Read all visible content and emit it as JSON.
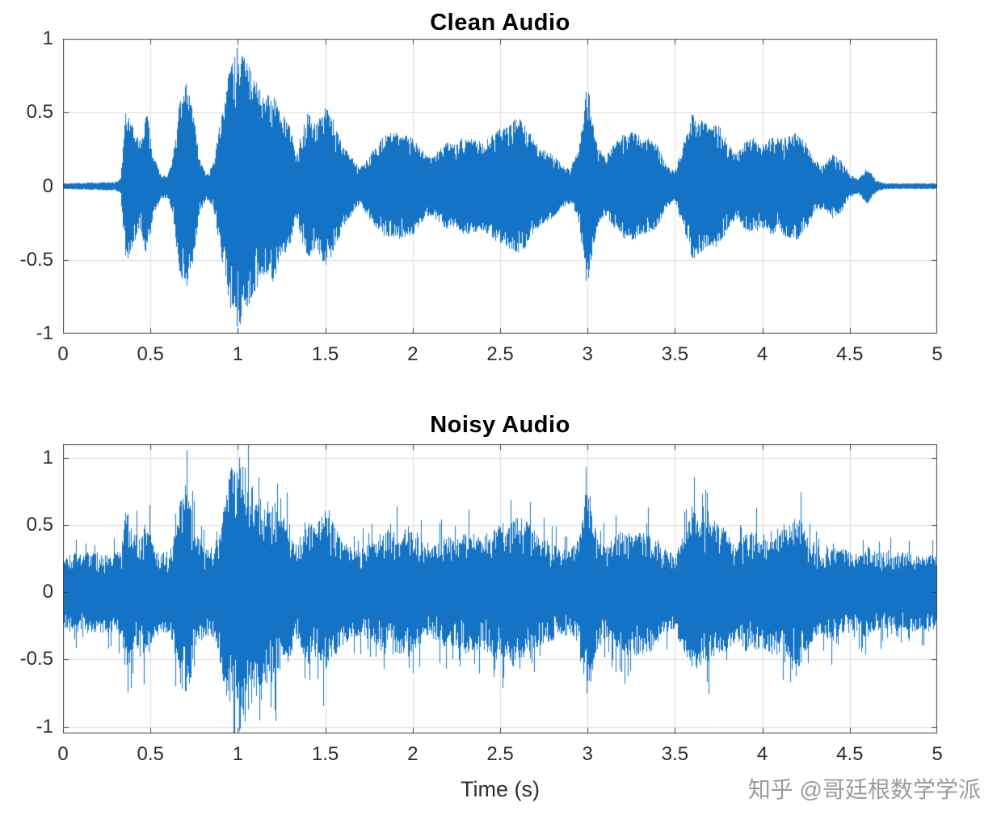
{
  "figure": {
    "background": "#ffffff",
    "watermark": "知乎 @哥廷根数学学派"
  },
  "axis_style": {
    "tick_label_color": "#2e2e2e",
    "grid_color": "#dcdcdc",
    "box_color": "#3f3f3f",
    "title_color": "#000000"
  },
  "chart_data": [
    {
      "type": "area",
      "id": "clean-audio",
      "title": "Clean Audio",
      "xlabel": "",
      "ylabel": "",
      "xlim": [
        0,
        5
      ],
      "ylim": [
        -1,
        1
      ],
      "xticks": [
        0,
        0.5,
        1,
        1.5,
        2,
        2.5,
        3,
        3.5,
        4,
        4.5,
        5
      ],
      "xtick_labels": [
        "0",
        "0.5",
        "1",
        "1.5",
        "2",
        "2.5",
        "3",
        "3.5",
        "4",
        "4.5",
        "5"
      ],
      "yticks": [
        -1,
        -0.5,
        0,
        0.5,
        1
      ],
      "ytick_labels": [
        "-1",
        "-0.5",
        "0",
        "0.5",
        "1"
      ],
      "grid": true,
      "legend": null,
      "line_color": "#1473c4",
      "seed": 42,
      "texture": {
        "samples": 3,
        "min_frac": 0.5,
        "floor": 0.012,
        "spike_prob": 0,
        "spike_gain": 1
      },
      "envelope": {
        "t": [
          0.0,
          0.3,
          0.33,
          0.36,
          0.4,
          0.44,
          0.48,
          0.52,
          0.56,
          0.6,
          0.63,
          0.66,
          0.7,
          0.74,
          0.78,
          0.82,
          0.86,
          0.9,
          0.95,
          1.0,
          1.05,
          1.1,
          1.15,
          1.2,
          1.25,
          1.3,
          1.33,
          1.36,
          1.4,
          1.45,
          1.5,
          1.55,
          1.6,
          1.65,
          1.7,
          1.75,
          1.8,
          1.85,
          1.9,
          1.95,
          2.0,
          2.05,
          2.1,
          2.15,
          2.2,
          2.25,
          2.3,
          2.35,
          2.4,
          2.45,
          2.5,
          2.55,
          2.6,
          2.65,
          2.7,
          2.75,
          2.8,
          2.85,
          2.9,
          2.95,
          3.0,
          3.05,
          3.1,
          3.15,
          3.2,
          3.25,
          3.3,
          3.35,
          3.4,
          3.45,
          3.5,
          3.55,
          3.6,
          3.65,
          3.7,
          3.75,
          3.8,
          3.85,
          3.9,
          3.95,
          4.0,
          4.05,
          4.1,
          4.15,
          4.2,
          4.25,
          4.3,
          4.35,
          4.4,
          4.45,
          4.5,
          4.55,
          4.6,
          4.65,
          4.7,
          5.0
        ],
        "a": [
          0.02,
          0.03,
          0.05,
          0.55,
          0.4,
          0.3,
          0.5,
          0.2,
          0.08,
          0.08,
          0.2,
          0.55,
          0.72,
          0.55,
          0.2,
          0.08,
          0.15,
          0.45,
          0.8,
          0.97,
          0.85,
          0.72,
          0.6,
          0.65,
          0.5,
          0.42,
          0.2,
          0.35,
          0.5,
          0.42,
          0.55,
          0.45,
          0.28,
          0.2,
          0.12,
          0.22,
          0.3,
          0.35,
          0.37,
          0.35,
          0.33,
          0.25,
          0.2,
          0.25,
          0.3,
          0.28,
          0.35,
          0.32,
          0.3,
          0.35,
          0.4,
          0.42,
          0.48,
          0.42,
          0.3,
          0.25,
          0.22,
          0.15,
          0.12,
          0.25,
          0.72,
          0.3,
          0.2,
          0.28,
          0.35,
          0.37,
          0.35,
          0.33,
          0.28,
          0.15,
          0.1,
          0.3,
          0.5,
          0.45,
          0.4,
          0.42,
          0.3,
          0.22,
          0.3,
          0.33,
          0.28,
          0.33,
          0.35,
          0.35,
          0.37,
          0.3,
          0.18,
          0.15,
          0.22,
          0.18,
          0.08,
          0.05,
          0.13,
          0.04,
          0.02,
          0.02
        ]
      }
    },
    {
      "type": "area",
      "id": "noisy-audio",
      "title": "Noisy Audio",
      "xlabel": "Time (s)",
      "ylabel": "",
      "xlim": [
        0,
        5
      ],
      "ylim": [
        -1.05,
        1.1
      ],
      "xticks": [
        0,
        0.5,
        1,
        1.5,
        2,
        2.5,
        3,
        3.5,
        4,
        4.5,
        5
      ],
      "xtick_labels": [
        "0",
        "0.5",
        "1",
        "1.5",
        "2",
        "2.5",
        "3",
        "3.5",
        "4",
        "4.5",
        "5"
      ],
      "yticks": [
        -1,
        -0.5,
        0,
        0.5,
        1
      ],
      "ytick_labels": [
        "-1",
        "-0.5",
        "0",
        "0.5",
        "1"
      ],
      "grid": true,
      "legend": null,
      "line_color": "#1473c4",
      "seed": 1337,
      "texture": {
        "samples": 2,
        "min_frac": 0.45,
        "floor": 0.26,
        "spike_prob": 0.1,
        "spike_gain": 1.45
      },
      "envelope": {
        "t": [
          0.0,
          0.3,
          0.33,
          0.36,
          0.4,
          0.44,
          0.48,
          0.52,
          0.56,
          0.6,
          0.63,
          0.66,
          0.7,
          0.74,
          0.78,
          0.82,
          0.86,
          0.9,
          0.95,
          1.0,
          1.05,
          1.1,
          1.15,
          1.2,
          1.25,
          1.3,
          1.33,
          1.36,
          1.4,
          1.45,
          1.5,
          1.55,
          1.6,
          1.65,
          1.7,
          1.75,
          1.8,
          1.85,
          1.9,
          1.95,
          2.0,
          2.05,
          2.1,
          2.15,
          2.2,
          2.25,
          2.3,
          2.35,
          2.4,
          2.45,
          2.5,
          2.55,
          2.6,
          2.65,
          2.7,
          2.75,
          2.8,
          2.85,
          2.9,
          2.95,
          3.0,
          3.05,
          3.1,
          3.15,
          3.2,
          3.25,
          3.3,
          3.35,
          3.4,
          3.45,
          3.5,
          3.55,
          3.6,
          3.65,
          3.7,
          3.75,
          3.8,
          3.85,
          3.9,
          3.95,
          4.0,
          4.05,
          4.1,
          4.15,
          4.2,
          4.25,
          4.3,
          4.35,
          4.4,
          4.45,
          4.5,
          4.55,
          4.6,
          4.65,
          4.7,
          5.0
        ],
        "a": [
          0.3,
          0.3,
          0.32,
          0.62,
          0.48,
          0.4,
          0.55,
          0.35,
          0.3,
          0.3,
          0.38,
          0.65,
          0.8,
          0.62,
          0.38,
          0.32,
          0.35,
          0.55,
          0.88,
          1.08,
          0.95,
          0.8,
          0.68,
          0.72,
          0.58,
          0.5,
          0.35,
          0.45,
          0.58,
          0.5,
          0.62,
          0.52,
          0.4,
          0.35,
          0.32,
          0.36,
          0.42,
          0.47,
          0.5,
          0.47,
          0.45,
          0.38,
          0.35,
          0.38,
          0.42,
          0.4,
          0.47,
          0.44,
          0.42,
          0.47,
          0.52,
          0.54,
          0.58,
          0.54,
          0.44,
          0.4,
          0.37,
          0.33,
          0.32,
          0.4,
          0.85,
          0.44,
          0.35,
          0.4,
          0.47,
          0.48,
          0.47,
          0.45,
          0.42,
          0.33,
          0.3,
          0.44,
          0.6,
          0.56,
          0.52,
          0.54,
          0.44,
          0.37,
          0.44,
          0.46,
          0.42,
          0.46,
          0.48,
          0.48,
          0.6,
          0.44,
          0.35,
          0.33,
          0.38,
          0.34,
          0.3,
          0.3,
          0.35,
          0.3,
          0.3,
          0.3
        ]
      }
    }
  ]
}
